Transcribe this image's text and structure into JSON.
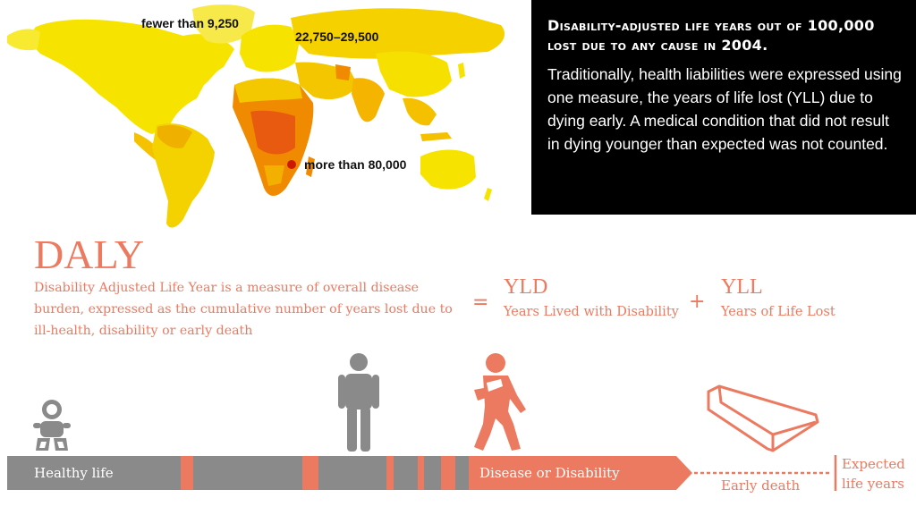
{
  "map": {
    "label_low": "fewer than 9,250",
    "label_mid": "22,750–29,500",
    "label_high": "more than 80,000"
  },
  "info": {
    "title": "Disability-adjusted life years out of 100,000 lost due to any cause in 2004.",
    "text": "Traditionally, health liabilities were expressed using one measure, the years of life lost (YLL) due to dying early. A medical condition that did not result in dying younger than expected was not counted."
  },
  "daly": {
    "title": "DALY",
    "description": "Disability Adjusted Life Year is a measure of overall disease burden, expressed as the cumulative number of years lost due to ill-health, disability or early death",
    "equals": "=",
    "plus": "+",
    "yld_title": "YLD",
    "yld_sub": "Years Lived with Disability",
    "yll_title": "YLL",
    "yll_sub": "Years of Life Lost"
  },
  "timeline": {
    "healthy_label": "Healthy life",
    "disease_label": "Disease or Disability",
    "early_death_label": "Early death",
    "expected_label_line1": "Expected",
    "expected_label_line2": "life years"
  },
  "colors": {
    "accent": "#ec7a61",
    "gray": "#8a8a8a",
    "map_yellow": "#f6e400",
    "map_orange": "#f4a000",
    "map_red": "#cc1a00"
  }
}
